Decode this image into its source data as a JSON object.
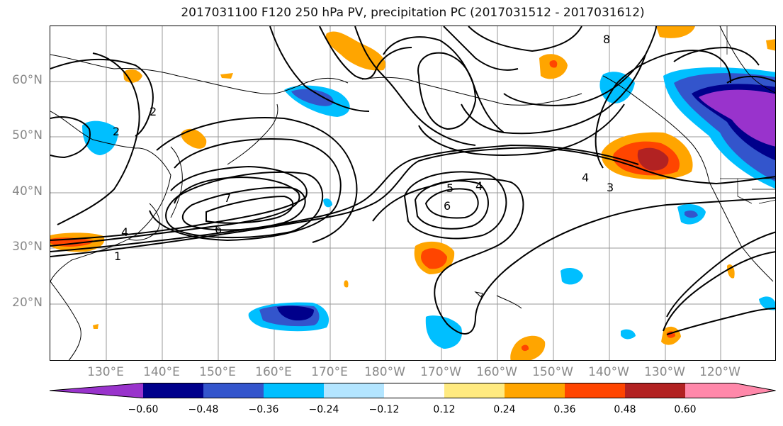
{
  "title": "2017031100 F120 250 hPa PV, precipitation PC (2017031512 - 2017031612)",
  "lat_labels": [
    "60°N",
    "50°N",
    "40°N",
    "30°N",
    "20°N"
  ],
  "lon_labels": [
    "130°E",
    "140°E",
    "150°E",
    "160°E",
    "170°E",
    "180°W",
    "170°W",
    "160°W",
    "150°W",
    "140°W",
    "130°W",
    "120°W"
  ],
  "contour_labels": [
    "1",
    "2",
    "3",
    "4",
    "5",
    "6",
    "7",
    "8"
  ],
  "colorbar": {
    "ticks": [
      "−0.60",
      "−0.48",
      "−0.36",
      "−0.24",
      "−0.12",
      "0.12",
      "0.24",
      "0.36",
      "0.48",
      "0.60"
    ],
    "colors": [
      "#9933cc",
      "#00008b",
      "#3355cc",
      "#00bfff",
      "#b3e5ff",
      "#ffffff",
      "#ffea80",
      "#ffa500",
      "#ff4500",
      "#b22222",
      "#ff88aa"
    ]
  },
  "colors": {
    "land_outline": "#000000",
    "grid": "#999999",
    "contour": "#000000"
  }
}
